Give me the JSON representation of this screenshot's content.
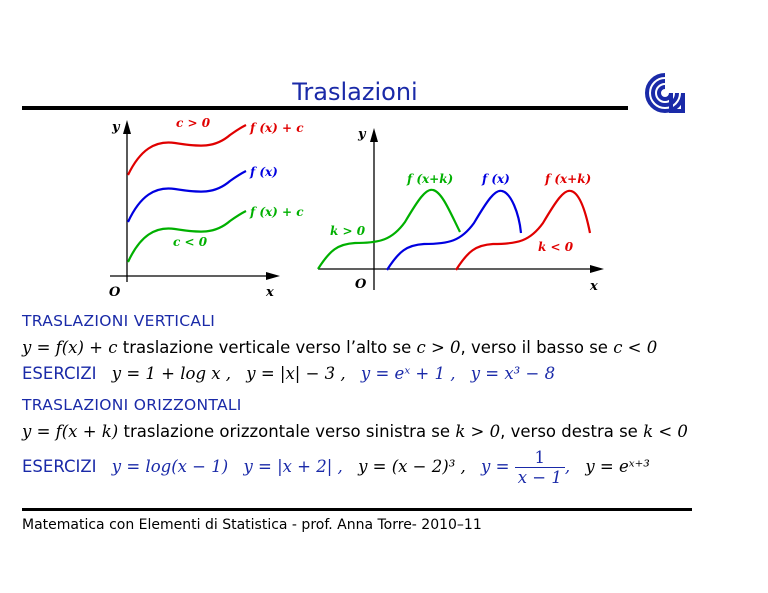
{
  "slide": {
    "title": "Traslazioni",
    "footer": "Matematica con Elementi di Statistica - prof. Anna Torre- 2010–11"
  },
  "graph_left": {
    "y_axis": "y",
    "x_axis": "x",
    "origin": "O",
    "label_c_pos": "c > 0",
    "label_fc_top": "f (x) + c",
    "label_f": "f (x)",
    "label_fc_bottom": "f (x) + c",
    "label_c_neg": "c < 0"
  },
  "graph_right": {
    "y_axis": "y",
    "x_axis": "x",
    "origin": "O",
    "label_fxk_left": "f (x+k)",
    "label_f": "f (x)",
    "label_fxk_right": "f (x+k)",
    "label_k_pos": "k > 0",
    "label_k_neg": "k < 0"
  },
  "sections": {
    "vertical_heading": "TRASLAZIONI VERTICALI",
    "vertical_formula": "y = f(x) + c",
    "vertical_text": "traslazione verticale verso l’alto se",
    "vertical_cond1": "c > 0",
    "vertical_mid": ", verso il basso se",
    "vertical_cond2": "c < 0",
    "exercises_label_1": "ESERCIZI",
    "ex1_a": "y = 1 + log x ,",
    "ex1_b": "y = |x| − 3 ,",
    "ex1_c": "y = eˣ + 1 ,",
    "ex1_d": "y = x³ − 8",
    "horizontal_heading": "TRASLAZIONI ORIZZONTALI",
    "horizontal_formula": "y = f(x + k)",
    "horizontal_text": "traslazione orizzontale verso sinistra se",
    "horizontal_cond1": "k > 0",
    "horizontal_mid": ", verso destra se",
    "horizontal_cond2": "k < 0",
    "exercises_label_2": "ESERCIZI",
    "ex2_a": "y = log(x − 1)",
    "ex2_b": "y = |x + 2| ,",
    "ex2_c": "y = (x − 2)³ ,",
    "ex2_d_lhs": "y =",
    "ex2_d_num": "1",
    "ex2_d_den": "x − 1",
    "ex2_d_tail": ",",
    "ex2_e": "y = eˣ⁺³"
  },
  "colors": {
    "title": "#1a2aa8",
    "red": "#e00000",
    "blue": "#0000e0",
    "green": "#00b000"
  }
}
